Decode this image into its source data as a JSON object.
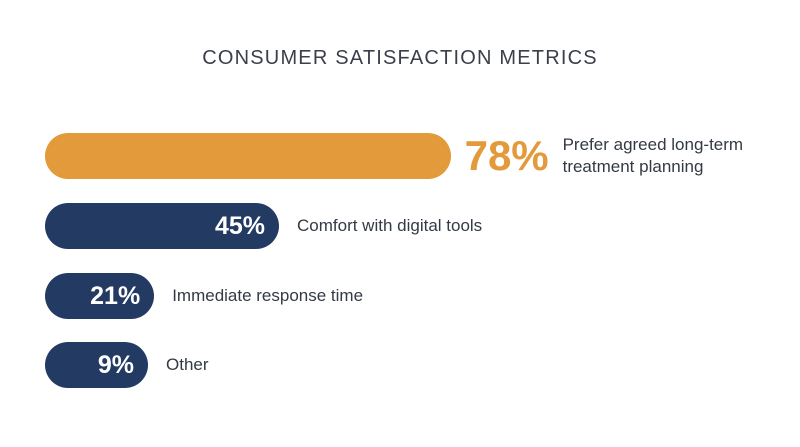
{
  "title": "CONSUMER SATISFACTION METRICS",
  "colors": {
    "highlight": "#e29a3b",
    "primary": "#233a63"
  },
  "chart_data": {
    "type": "bar",
    "orientation": "horizontal",
    "title": "CONSUMER SATISFACTION METRICS",
    "xlim": [
      0,
      100
    ],
    "grid": false,
    "legend": "none",
    "categories": [
      "Prefer agreed long-term treatment planning",
      "Comfort with digital tools",
      "Immediate response time",
      "Other"
    ],
    "values": [
      78,
      45,
      21,
      9
    ],
    "value_labels": [
      "78%",
      "45%",
      "21%",
      "9%"
    ],
    "highlighted": [
      true,
      false,
      false,
      false
    ]
  },
  "bars": [
    {
      "label": "Prefer agreed long-term\ntreatment planning",
      "value_text": "78%"
    },
    {
      "label": "Comfort with digital tools",
      "value_text": "45%"
    },
    {
      "label": "Immediate response time",
      "value_text": "21%"
    },
    {
      "label": "Other",
      "value_text": "9%"
    }
  ]
}
